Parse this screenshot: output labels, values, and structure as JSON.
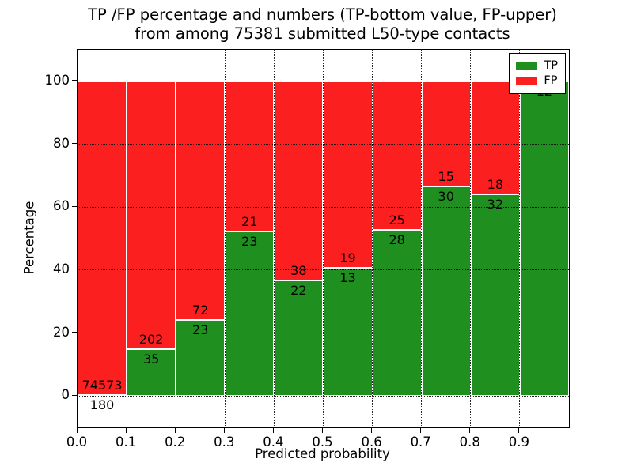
{
  "figure": {
    "title_line1": "TP /FP percentage and numbers (TP-bottom value, FP-upper)",
    "title_line2": "from among 75381 submitted L50-type contacts",
    "xlabel": "Predicted probability",
    "ylabel": "Percentage"
  },
  "legend": {
    "items": [
      {
        "label": "TP",
        "color": "#1f8f1f"
      },
      {
        "label": "FP",
        "color": "#fb1f1f"
      }
    ]
  },
  "colors": {
    "tp_green": "#1f8f1f",
    "fp_red": "#fb1f1f",
    "grid": "#000000",
    "background": "#ffffff"
  },
  "chart_data": {
    "type": "bar",
    "subtype": "stacked-percentage",
    "title": "TP /FP percentage and numbers (TP-bottom value, FP-upper) from among 75381 submitted L50-type contacts",
    "xlabel": "Predicted probability",
    "ylabel": "Percentage",
    "xlim": [
      0.0,
      1.0
    ],
    "ylim": [
      -10,
      110
    ],
    "grid": true,
    "legend_position": "upper right",
    "total_submitted": 75381,
    "contact_type": "L50",
    "x_tick_labels": [
      "0.0",
      "0.1",
      "0.2",
      "0.3",
      "0.4",
      "0.5",
      "0.6",
      "0.7",
      "0.8",
      "0.9"
    ],
    "y_tick_values": [
      0,
      20,
      40,
      60,
      80,
      100
    ],
    "y_tick_labels": [
      "0",
      "20",
      "40",
      "60",
      "80",
      "100"
    ],
    "series": [
      {
        "name": "TP",
        "role": "bottom",
        "color": "#1f8f1f"
      },
      {
        "name": "FP",
        "role": "upper",
        "color": "#fb1f1f"
      }
    ],
    "bins": [
      {
        "range": [
          0.0,
          0.1
        ],
        "tp": 180,
        "fp": 74573,
        "show_fp_label": true
      },
      {
        "range": [
          0.1,
          0.2
        ],
        "tp": 35,
        "fp": 202,
        "show_fp_label": true
      },
      {
        "range": [
          0.2,
          0.3
        ],
        "tp": 23,
        "fp": 72,
        "show_fp_label": true
      },
      {
        "range": [
          0.3,
          0.4
        ],
        "tp": 23,
        "fp": 21,
        "show_fp_label": true
      },
      {
        "range": [
          0.4,
          0.5
        ],
        "tp": 22,
        "fp": 38,
        "show_fp_label": true
      },
      {
        "range": [
          0.5,
          0.6
        ],
        "tp": 13,
        "fp": 19,
        "show_fp_label": true
      },
      {
        "range": [
          0.6,
          0.7
        ],
        "tp": 28,
        "fp": 25,
        "show_fp_label": true
      },
      {
        "range": [
          0.7,
          0.8
        ],
        "tp": 30,
        "fp": 15,
        "show_fp_label": true
      },
      {
        "range": [
          0.8,
          0.9
        ],
        "tp": 32,
        "fp": 18,
        "show_fp_label": true
      },
      {
        "range": [
          0.9,
          1.0
        ],
        "tp": 12,
        "fp": 0,
        "show_fp_label": false
      }
    ]
  }
}
